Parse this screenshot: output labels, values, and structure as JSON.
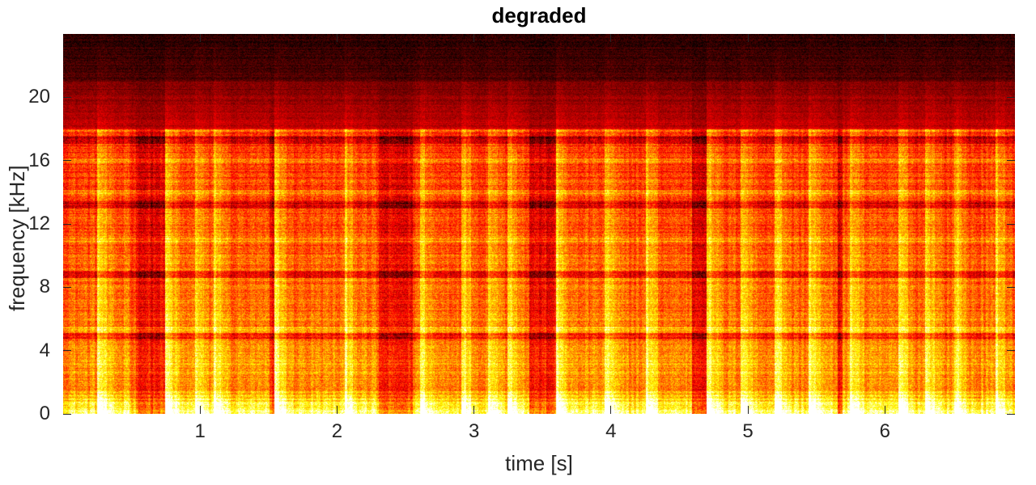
{
  "chart_data": {
    "type": "heatmap",
    "subtype": "spectrogram",
    "title": "degraded",
    "xlabel": "time [s]",
    "ylabel": "frequency [kHz]",
    "xlim": [
      0.0,
      6.95
    ],
    "ylim": [
      0,
      24
    ],
    "xticks": [
      1,
      2,
      3,
      4,
      5,
      6
    ],
    "xtick_labels": [
      "1",
      "2",
      "3",
      "4",
      "5",
      "6"
    ],
    "yticks": [
      0,
      4,
      8,
      12,
      16,
      20
    ],
    "ytick_labels": [
      "0",
      "4",
      "8",
      "12",
      "16",
      "20"
    ],
    "colormap": "hot",
    "grid": false,
    "colors": {
      "low": "#000000",
      "mid_low": "#8b0000",
      "mid": "#ff2000",
      "mid_high": "#ff9a00",
      "high": "#ffff60"
    },
    "features": {
      "lowpass_band_edge_khz": 18,
      "secondary_band_edge_khz": 21,
      "dark_bands_khz": [
        4.9,
        8.8,
        13.2,
        17.3
      ],
      "bright_bands_khz": [
        5.3,
        11.0,
        14.0,
        16.0,
        17.9
      ],
      "onset_times_s": [
        0.25,
        0.45,
        0.75,
        0.95,
        1.1,
        1.55,
        2.05,
        2.6,
        2.9,
        3.1,
        3.25,
        3.6,
        3.95,
        4.25,
        4.7,
        4.95,
        5.2,
        5.45,
        5.75,
        6.1,
        6.3,
        6.5,
        6.8
      ],
      "loud_segments_s": [
        [
          0.0,
          0.45
        ],
        [
          0.75,
          1.5
        ],
        [
          1.55,
          2.3
        ],
        [
          2.55,
          3.4
        ],
        [
          3.6,
          4.6
        ],
        [
          4.7,
          5.65
        ],
        [
          5.7,
          6.95
        ]
      ],
      "quiet_gaps_s": [
        [
          0.45,
          0.75
        ],
        [
          1.5,
          1.55
        ],
        [
          2.3,
          2.55
        ],
        [
          3.4,
          3.6
        ],
        [
          4.6,
          4.7
        ],
        [
          5.65,
          5.7
        ]
      ]
    }
  }
}
